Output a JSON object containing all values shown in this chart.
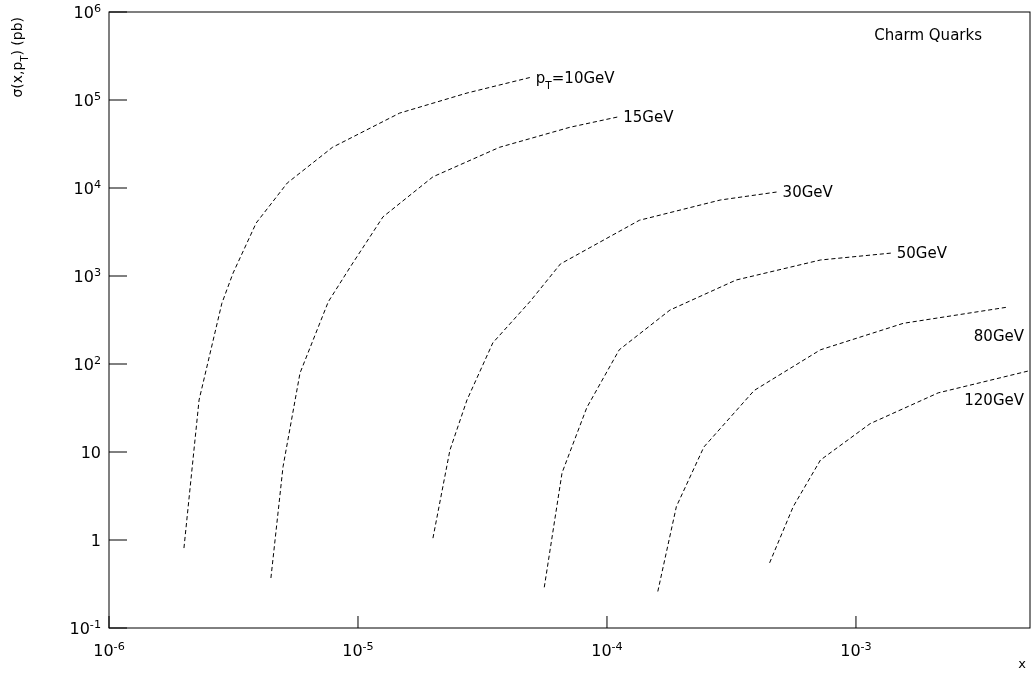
{
  "chart_data": {
    "type": "line",
    "title": "Charm Quarks",
    "xlabel": "x",
    "ylabel": "σ(x,p$_{T}$) (pb)",
    "log": "xy",
    "line_style": "dashed",
    "marker": "none",
    "grid": false,
    "xlim": [
      1e-06,
      0.005
    ],
    "xticks": [
      {
        "value": 1e-06,
        "label": "10$^{-6}$"
      },
      {
        "value": 1e-05,
        "label": "10$^{-5}$"
      },
      {
        "value": 0.0001,
        "label": "10$^{-4}$"
      },
      {
        "value": 0.001,
        "label": "10$^{-3}$"
      }
    ],
    "ylim": [
      0.1,
      1000000
    ],
    "yticks": [
      {
        "value": 0.1,
        "label": "10$^{-1}$"
      },
      1,
      10,
      {
        "value": 100,
        "label": "10$^{2}$"
      },
      {
        "value": 1000,
        "label": "10$^{3}$"
      },
      {
        "value": 10000,
        "label": "10$^{4}$"
      },
      {
        "value": 100000,
        "label": "10$^{5}$"
      },
      {
        "value": 1000000,
        "label": "10$^{6}$"
      }
    ],
    "series": [
      {
        "name": "p$_{T}$=10GeV",
        "color": "#000000",
        "x": [
          2e-06,
          2.3e-06,
          2.84e-06,
          3.15e-06,
          3.9e-06,
          5.2e-06,
          7.9e-06,
          1.47e-05,
          2.74e-05,
          4.9e-05
        ],
        "values": [
          0.81,
          39,
          490,
          1080,
          4000,
          11400,
          29000,
          71000,
          120000,
          180000
        ]
      },
      {
        "name": "15GeV",
        "color": "#000000",
        "x": [
          4.47e-06,
          5e-06,
          5.85e-06,
          7.6e-06,
          9.3e-06,
          1.26e-05,
          2e-05,
          3.7e-05,
          7.1e-05,
          0.00011
        ],
        "values": [
          0.37,
          6.8,
          79,
          510,
          1260,
          4700,
          13400,
          29000,
          49000,
          64000
        ]
      },
      {
        "name": "30GeV",
        "color": "#000000",
        "x": [
          2e-05,
          2.34e-05,
          2.74e-05,
          3.48e-05,
          4.9e-05,
          6.5e-05,
          0.000135,
          0.000285,
          0.00048
        ],
        "values": [
          1.05,
          10.5,
          39,
          174,
          510,
          1370,
          4300,
          7300,
          9000
        ]
      },
      {
        "name": "50GeV",
        "color": "#000000",
        "x": [
          5.6e-05,
          6.6e-05,
          8.3e-05,
          0.000112,
          0.000179,
          0.00033,
          0.00072,
          0.00138
        ],
        "values": [
          0.29,
          5.8,
          32,
          145,
          410,
          900,
          1520,
          1820
        ]
      },
      {
        "name": "80GeV",
        "color": "#000000",
        "x": [
          0.00016,
          0.00019,
          0.000245,
          0.00039,
          0.00072,
          0.00155,
          0.004
        ],
        "values": [
          0.26,
          2.4,
          11.4,
          50,
          145,
          290,
          440
        ]
      },
      {
        "name": "120GeV",
        "color": "#000000",
        "x": [
          0.00045,
          0.00056,
          0.00072,
          0.00114,
          0.00214,
          0.0049
        ],
        "values": [
          0.55,
          2.4,
          8.1,
          21,
          47,
          83
        ]
      }
    ]
  }
}
